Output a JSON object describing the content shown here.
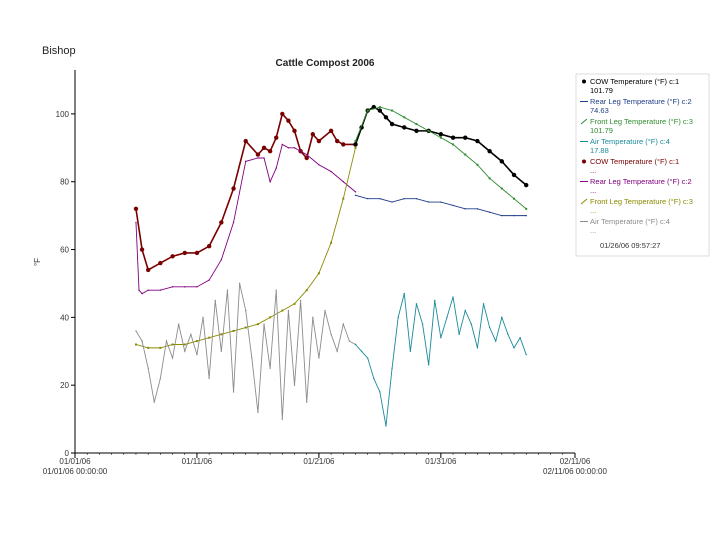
{
  "corner_label": "Bishop",
  "chart_data": {
    "type": "line",
    "title": "Cattle Compost 2006",
    "ylabel": "°F",
    "xlabel": "",
    "ylim": [
      0,
      110
    ],
    "yticks": [
      "0",
      "20",
      "40",
      "60",
      "80",
      "100"
    ],
    "xrange": [
      "2006-01-01",
      "2006-02-11"
    ],
    "xticks": [
      {
        "date": "2006-01-01",
        "top": "01/01/06",
        "bottom": "01/01/06 00:00:00"
      },
      {
        "date": "2006-01-11",
        "top": "01/11/06",
        "bottom": ""
      },
      {
        "date": "2006-01-21",
        "top": "01/21/06",
        "bottom": ""
      },
      {
        "date": "2006-01-31",
        "top": "01/31/06",
        "bottom": ""
      },
      {
        "date": "2006-02-11",
        "top": "02/11/06",
        "bottom": "02/11/06 00:00:00"
      }
    ],
    "grid": false,
    "legend_position": "right",
    "legend_timestamp": "01/26/06 09:57:27",
    "series": [
      {
        "name": "COW Temperature (°F) c:1",
        "color": "#7a0000",
        "marker": "dot",
        "x": [
          "2006-01-06",
          "2006-01-06T12:00",
          "2006-01-07",
          "2006-01-08",
          "2006-01-09",
          "2006-01-10",
          "2006-01-11",
          "2006-01-12",
          "2006-01-13",
          "2006-01-14",
          "2006-01-15",
          "2006-01-16",
          "2006-01-16T12:00",
          "2006-01-17",
          "2006-01-17T12:00",
          "2006-01-18",
          "2006-01-18T12:00",
          "2006-01-19",
          "2006-01-19T12:00",
          "2006-01-20",
          "2006-01-20T12:00",
          "2006-01-21",
          "2006-01-22",
          "2006-01-22T12:00",
          "2006-01-23",
          "2006-01-24"
        ],
        "values": [
          72,
          60,
          54,
          56,
          58,
          59,
          59,
          61,
          68,
          78,
          92,
          88,
          90,
          89,
          93,
          100,
          98,
          95,
          89,
          87,
          94,
          92,
          95,
          92,
          91,
          91
        ]
      },
      {
        "name": "Rear Leg Temperature (°F) c:2",
        "color": "#800080",
        "marker": "none",
        "x": [
          "2006-01-06",
          "2006-01-06T06:00",
          "2006-01-06T12:00",
          "2006-01-07",
          "2006-01-08",
          "2006-01-09",
          "2006-01-10",
          "2006-01-11",
          "2006-01-12",
          "2006-01-13",
          "2006-01-14",
          "2006-01-15",
          "2006-01-16",
          "2006-01-16T12:00",
          "2006-01-17",
          "2006-01-17T12:00",
          "2006-01-18",
          "2006-01-18T12:00",
          "2006-01-19",
          "2006-01-20",
          "2006-01-21",
          "2006-01-22",
          "2006-01-23",
          "2006-01-24"
        ],
        "values": [
          68,
          48,
          47,
          48,
          48,
          49,
          49,
          49,
          51,
          57,
          68,
          86,
          87,
          87,
          80,
          84,
          91,
          90,
          90,
          88,
          85,
          83,
          80,
          77
        ]
      },
      {
        "name": "Front Leg Temperature (°F) c:3",
        "color": "#8a8a00",
        "marker": "tick",
        "x": [
          "2006-01-06",
          "2006-01-07",
          "2006-01-08",
          "2006-01-09",
          "2006-01-10",
          "2006-01-11",
          "2006-01-12",
          "2006-01-13",
          "2006-01-14",
          "2006-01-15",
          "2006-01-16",
          "2006-01-17",
          "2006-01-18",
          "2006-01-19",
          "2006-01-20",
          "2006-01-21",
          "2006-01-22",
          "2006-01-23",
          "2006-01-24"
        ],
        "values": [
          32,
          31,
          31,
          32,
          32,
          33,
          34,
          35,
          36,
          37,
          38,
          40,
          42,
          44,
          48,
          53,
          62,
          75,
          90
        ]
      },
      {
        "name": "Air Temperature (°F) c:4",
        "color": "#8c8c8c",
        "marker": "none",
        "x": [
          "2006-01-06",
          "2006-01-06T12:00",
          "2006-01-07",
          "2006-01-07T12:00",
          "2006-01-08",
          "2006-01-08T12:00",
          "2006-01-09",
          "2006-01-09T12:00",
          "2006-01-10",
          "2006-01-10T12:00",
          "2006-01-11",
          "2006-01-11T12:00",
          "2006-01-12",
          "2006-01-12T12:00",
          "2006-01-13",
          "2006-01-13T12:00",
          "2006-01-14",
          "2006-01-14T12:00",
          "2006-01-15",
          "2006-01-15T12:00",
          "2006-01-16",
          "2006-01-16T12:00",
          "2006-01-17",
          "2006-01-17T12:00",
          "2006-01-18",
          "2006-01-18T12:00",
          "2006-01-19",
          "2006-01-19T12:00",
          "2006-01-20",
          "2006-01-20T12:00",
          "2006-01-21",
          "2006-01-21T12:00",
          "2006-01-22",
          "2006-01-22T12:00",
          "2006-01-23",
          "2006-01-23T12:00",
          "2006-01-24"
        ],
        "values": [
          36,
          33,
          25,
          15,
          22,
          33,
          28,
          38,
          30,
          35,
          29,
          40,
          22,
          45,
          30,
          48,
          18,
          50,
          42,
          28,
          12,
          38,
          25,
          48,
          10,
          42,
          20,
          45,
          15,
          40,
          28,
          42,
          35,
          30,
          38,
          33,
          32
        ]
      },
      {
        "name": "COW Temperature (°F) c:1",
        "color": "#000000",
        "marker": "dot",
        "x": [
          "2006-01-24",
          "2006-01-24T12:00",
          "2006-01-25",
          "2006-01-25T12:00",
          "2006-01-26",
          "2006-01-26T12:00",
          "2006-01-27",
          "2006-01-28",
          "2006-01-29",
          "2006-01-30",
          "2006-01-31",
          "2006-02-01",
          "2006-02-02",
          "2006-02-03",
          "2006-02-04",
          "2006-02-05",
          "2006-02-06",
          "2006-02-07"
        ],
        "values": [
          91,
          96,
          101,
          102,
          101,
          99,
          97,
          96,
          95,
          95,
          94,
          93,
          93,
          92,
          89,
          86,
          82,
          79
        ]
      },
      {
        "name": "Rear Leg Temperature (°F) c:2",
        "color": "#1f3c88",
        "marker": "none",
        "x": [
          "2006-01-24",
          "2006-01-25",
          "2006-01-26",
          "2006-01-27",
          "2006-01-28",
          "2006-01-29",
          "2006-01-30",
          "2006-01-31",
          "2006-02-01",
          "2006-02-02",
          "2006-02-03",
          "2006-02-04",
          "2006-02-05",
          "2006-02-06",
          "2006-02-07"
        ],
        "values": [
          76,
          75,
          75,
          74,
          75,
          75,
          74,
          74,
          73,
          72,
          72,
          71,
          70,
          70,
          70
        ]
      },
      {
        "name": "Front Leg Temperature (°F) c:3",
        "color": "#2e8b2e",
        "marker": "tick",
        "x": [
          "2006-01-24",
          "2006-01-25",
          "2006-01-26",
          "2006-01-27",
          "2006-01-28",
          "2006-01-29",
          "2006-01-30",
          "2006-01-31",
          "2006-02-01",
          "2006-02-02",
          "2006-02-03",
          "2006-02-04",
          "2006-02-05",
          "2006-02-06",
          "2006-02-07"
        ],
        "values": [
          92,
          101,
          102,
          101,
          99,
          97,
          95,
          93,
          91,
          88,
          85,
          81,
          78,
          75,
          72
        ]
      },
      {
        "name": "Air Temperature (°F) c:4",
        "color": "#1a8a9a",
        "marker": "none",
        "x": [
          "2006-01-24",
          "2006-01-24T12:00",
          "2006-01-25",
          "2006-01-25T12:00",
          "2006-01-26",
          "2006-01-26T12:00",
          "2006-01-27",
          "2006-01-27T12:00",
          "2006-01-28",
          "2006-01-28T12:00",
          "2006-01-29",
          "2006-01-29T12:00",
          "2006-01-30",
          "2006-01-30T12:00",
          "2006-01-31",
          "2006-01-31T12:00",
          "2006-02-01",
          "2006-02-01T12:00",
          "2006-02-02",
          "2006-02-02T12:00",
          "2006-02-03",
          "2006-02-03T12:00",
          "2006-02-04",
          "2006-02-04T12:00",
          "2006-02-05",
          "2006-02-05T12:00",
          "2006-02-06",
          "2006-02-06T12:00",
          "2006-02-07"
        ],
        "values": [
          32,
          30,
          28,
          22,
          18,
          8,
          25,
          40,
          47,
          30,
          44,
          38,
          26,
          45,
          34,
          40,
          46,
          35,
          42,
          38,
          31,
          44,
          37,
          33,
          40,
          35,
          31,
          34,
          29
        ]
      }
    ],
    "legend_entries": [
      {
        "text": "COW Temperature (°F) c:1",
        "value": "101.79",
        "color": "#000000",
        "marker": "dot"
      },
      {
        "text": "Rear Leg Temperature (°F) c:2",
        "value": "74.63",
        "color": "#1f3c88",
        "marker": "line"
      },
      {
        "text": "Front Leg Temperature (°F) c:3",
        "value": "101.79",
        "color": "#2e8b2e",
        "marker": "tick"
      },
      {
        "text": "Air Temperature (°F) c:4",
        "value": "17.88",
        "color": "#1a8a9a",
        "marker": "line"
      },
      {
        "text": "COW Temperature (°F) c:1",
        "value": "...",
        "color": "#7a0000",
        "marker": "dot"
      },
      {
        "text": "Rear Leg Temperature (°F) c:2",
        "value": "...",
        "color": "#800080",
        "marker": "line"
      },
      {
        "text": "Front Leg Temperature (°F) c:3",
        "value": "...",
        "color": "#8a8a00",
        "marker": "tick"
      },
      {
        "text": "Air Temperature (°F) c:4",
        "value": "...",
        "color": "#8c8c8c",
        "marker": "line"
      }
    ]
  }
}
